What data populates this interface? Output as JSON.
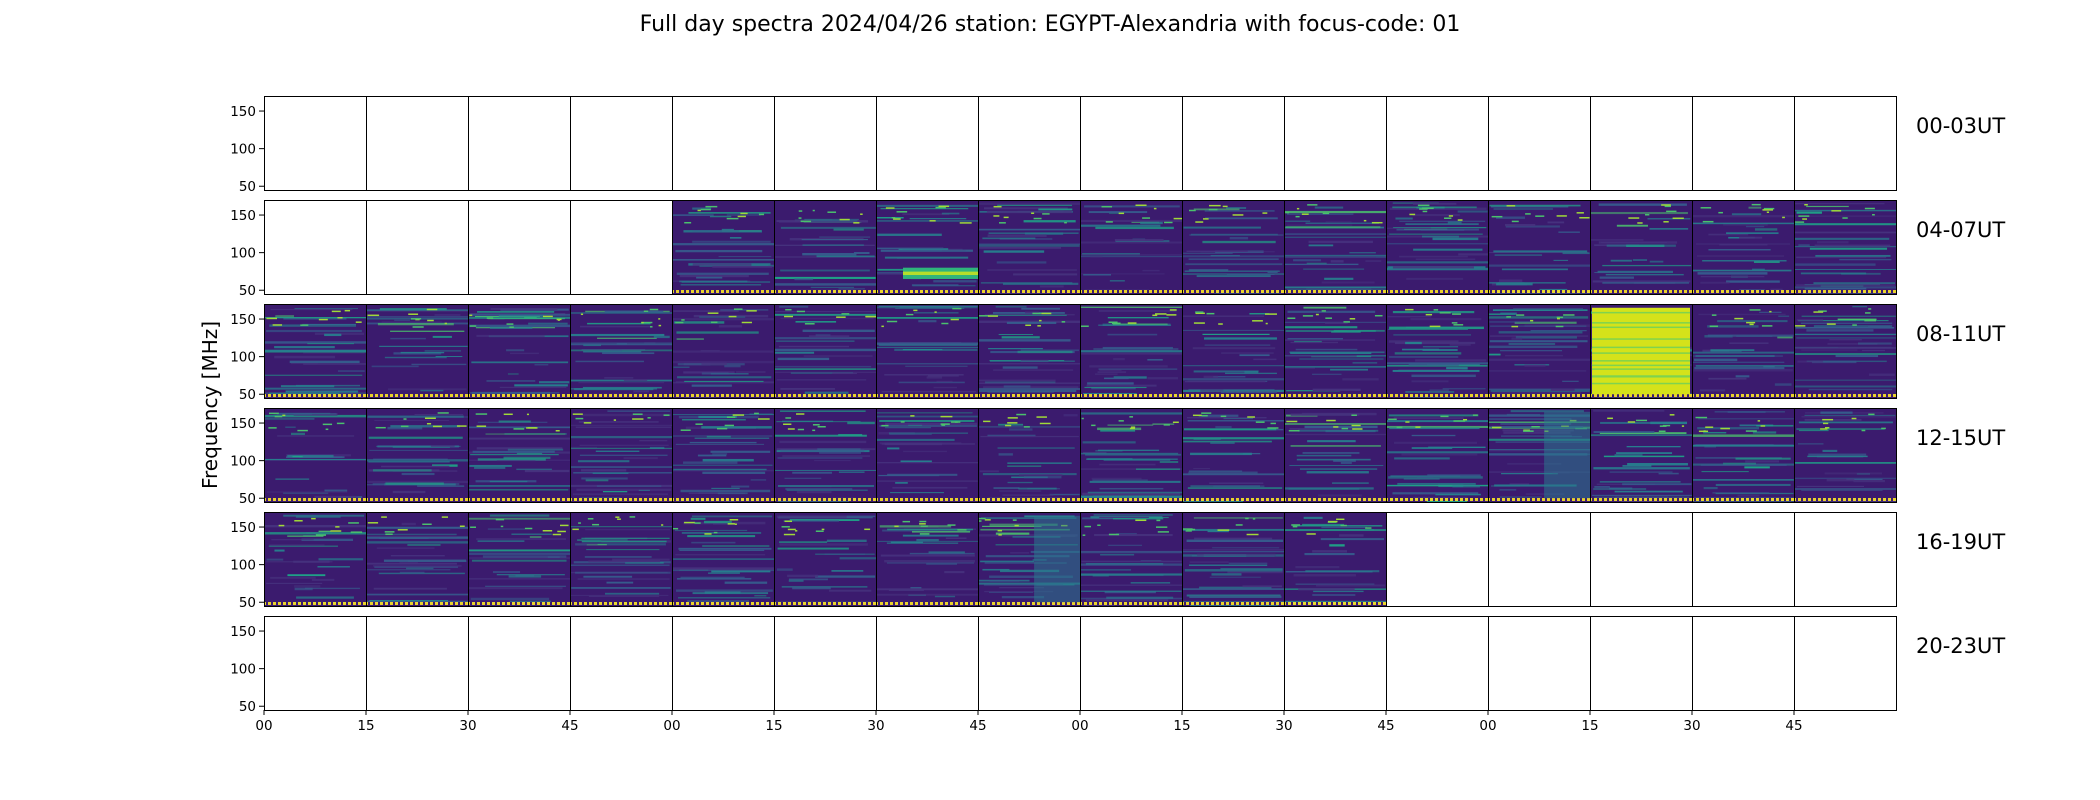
{
  "chart_data": {
    "type": "heatmap",
    "title": "Full day spectra 2024/04/26 station: EGYPT-Alexandria with focus-code: 01",
    "ylabel": "Frequency [MHz]",
    "xlabel": "",
    "ylim": [
      45,
      170
    ],
    "y_ticks": [
      "50",
      "100",
      "150"
    ],
    "y_tick_values": [
      50,
      100,
      150
    ],
    "x_tick_labels": [
      "00",
      "15",
      "30",
      "45",
      "00",
      "15",
      "30",
      "45",
      "00",
      "15",
      "30",
      "45",
      "00",
      "15",
      "30",
      "45"
    ],
    "row_labels": [
      "00-03UT",
      "04-07UT",
      "08-11UT",
      "12-15UT",
      "16-19UT",
      "20-23UT"
    ],
    "panels_per_row": 16,
    "panel_minutes": 15,
    "colormap": "viridis",
    "grid": false,
    "data_availability": [
      [
        0,
        0,
        0,
        0,
        0,
        0,
        0,
        0,
        0,
        0,
        0,
        0,
        0,
        0,
        0,
        0
      ],
      [
        0,
        0,
        0,
        0,
        1,
        1,
        1,
        1,
        1,
        1,
        1,
        1,
        1,
        1,
        1,
        1
      ],
      [
        1,
        1,
        1,
        1,
        1,
        1,
        1,
        1,
        1,
        1,
        1,
        1,
        1,
        1,
        1,
        1
      ],
      [
        1,
        1,
        1,
        1,
        1,
        1,
        1,
        1,
        1,
        1,
        1,
        1,
        1,
        1,
        1,
        1
      ],
      [
        1,
        1,
        1,
        1,
        1,
        1,
        1,
        1,
        1,
        1,
        1,
        0,
        0,
        0,
        0,
        0
      ],
      [
        0,
        0,
        0,
        0,
        0,
        0,
        0,
        0,
        0,
        0,
        0,
        0,
        0,
        0,
        0,
        0
      ]
    ],
    "highlights": [
      {
        "row": 1,
        "panel": 6,
        "freq_range": [
          65,
          80
        ],
        "intensity": "high"
      },
      {
        "row": 2,
        "panel": 13,
        "freq_range": [
          50,
          165
        ],
        "intensity": "saturated"
      },
      {
        "row": 3,
        "panel": 12,
        "freq_range": [
          50,
          165
        ],
        "intensity": "medium"
      },
      {
        "row": 4,
        "panel": 7,
        "freq_range": [
          50,
          165
        ],
        "intensity": "medium"
      }
    ]
  }
}
